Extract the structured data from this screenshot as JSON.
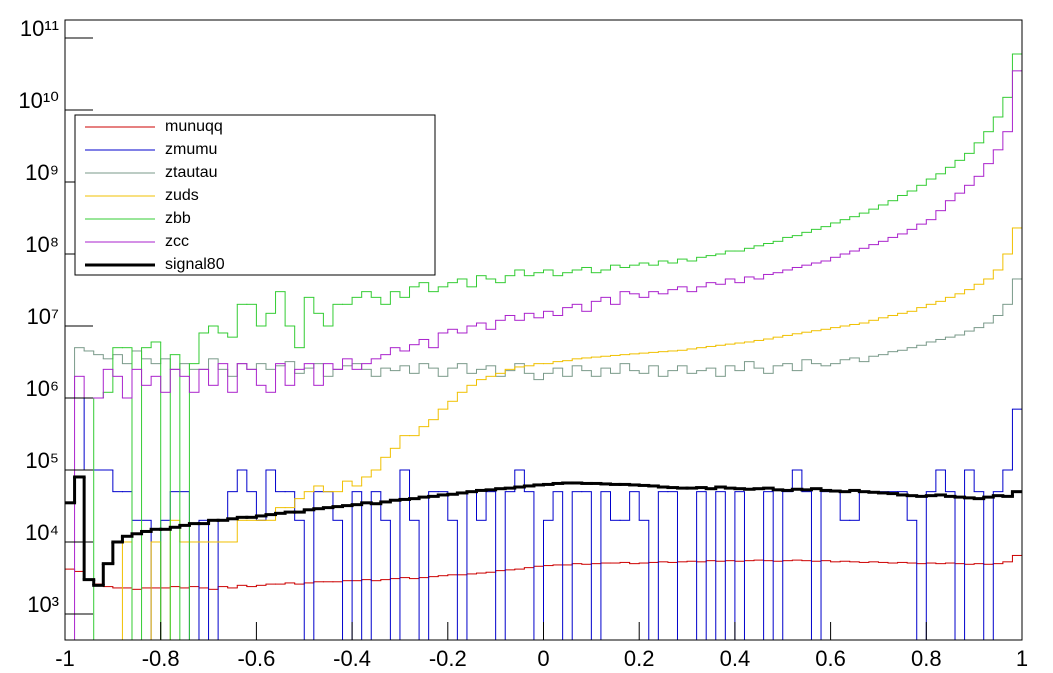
{
  "chart_data": {
    "type": "histogram",
    "log_y": true,
    "xlim": [
      -1,
      1
    ],
    "ylim": [
      435,
      178000000000
    ],
    "xticks": [
      -1,
      -0.8,
      -0.6,
      -0.4,
      -0.2,
      0,
      0.2,
      0.4,
      0.6,
      0.8,
      1
    ],
    "yticks": [
      {
        "value": 1000,
        "label": "10³"
      },
      {
        "value": 10000,
        "label": "10⁴"
      },
      {
        "value": 100000,
        "label": "10⁵"
      },
      {
        "value": 1000000,
        "label": "10⁶"
      },
      {
        "value": 10000000,
        "label": "10⁷"
      },
      {
        "value": 100000000,
        "label": "10⁸"
      },
      {
        "value": 1000000000,
        "label": "10⁹"
      },
      {
        "value": 10000000000,
        "label": "10¹⁰"
      },
      {
        "value": 100000000000,
        "label": "10¹¹"
      }
    ],
    "bins": [
      -1,
      -0.98,
      -0.96,
      -0.94,
      -0.92,
      -0.9,
      -0.88,
      -0.86,
      -0.84,
      -0.82,
      -0.8,
      -0.78,
      -0.76,
      -0.74,
      -0.72,
      -0.7,
      -0.68,
      -0.66,
      -0.64,
      -0.62,
      -0.6,
      -0.58,
      -0.56,
      -0.54,
      -0.52,
      -0.5,
      -0.48,
      -0.46,
      -0.44,
      -0.42,
      -0.4,
      -0.38,
      -0.36,
      -0.34,
      -0.32,
      -0.3,
      -0.28,
      -0.26,
      -0.24,
      -0.22,
      -0.2,
      -0.18,
      -0.16,
      -0.14,
      -0.12,
      -0.1,
      -0.08,
      -0.06,
      -0.04,
      -0.02,
      0,
      0.02,
      0.04,
      0.06,
      0.08,
      0.1,
      0.12,
      0.14,
      0.16,
      0.18,
      0.2,
      0.22,
      0.24,
      0.26,
      0.28,
      0.3,
      0.32,
      0.34,
      0.36,
      0.38,
      0.4,
      0.42,
      0.44,
      0.46,
      0.48,
      0.5,
      0.52,
      0.54,
      0.56,
      0.58,
      0.6,
      0.62,
      0.64,
      0.66,
      0.68,
      0.7,
      0.72,
      0.74,
      0.76,
      0.78,
      0.8,
      0.82,
      0.84,
      0.86,
      0.88,
      0.9,
      0.92,
      0.94,
      0.96,
      0.98,
      1
    ],
    "legend": "upper left",
    "series": [
      {
        "name": "munuqq",
        "color": "#cc0000",
        "values": [
          4200,
          3900,
          3000,
          2600,
          2400,
          2300,
          2300,
          2200,
          2300,
          2300,
          2300,
          2400,
          2300,
          2400,
          2300,
          2200,
          2400,
          2300,
          2500,
          2400,
          2500,
          2600,
          2600,
          2700,
          2600,
          2700,
          2800,
          2800,
          2800,
          2900,
          2900,
          3000,
          2900,
          3000,
          3100,
          3200,
          3100,
          3200,
          3300,
          3400,
          3500,
          3500,
          3600,
          3700,
          3800,
          4000,
          4100,
          4200,
          4400,
          4600,
          4700,
          4800,
          4800,
          5000,
          4900,
          5000,
          5100,
          5100,
          5200,
          5000,
          5100,
          5200,
          5300,
          5200,
          5300,
          5400,
          5300,
          5500,
          5400,
          5500,
          5400,
          5500,
          5600,
          5500,
          5400,
          5500,
          5600,
          5500,
          5400,
          5500,
          5300,
          5400,
          5300,
          5200,
          5300,
          5200,
          5100,
          5200,
          5100,
          5000,
          5100,
          5000,
          5100,
          5000,
          4900,
          5000,
          4900,
          5000,
          5300,
          6500
        ]
      },
      {
        "name": "zmumu",
        "color": "#0000cc",
        "values": [
          1000000,
          1000000,
          100000,
          100000,
          100000,
          50000,
          50000,
          20000,
          20000,
          0,
          20000,
          50000,
          50000,
          0,
          20000,
          0,
          20000,
          50000,
          100000,
          50000,
          20000,
          100000,
          50000,
          50000,
          20000,
          0,
          50000,
          50000,
          20000,
          0,
          50000,
          0,
          50000,
          20000,
          0,
          100000,
          20000,
          0,
          50000,
          50000,
          20000,
          0,
          50000,
          20000,
          50000,
          0,
          50000,
          100000,
          50000,
          0,
          20000,
          50000,
          0,
          50000,
          50000,
          0,
          50000,
          20000,
          20000,
          50000,
          20000,
          0,
          50000,
          50000,
          0,
          0,
          50000,
          0,
          50000,
          0,
          50000,
          0,
          0,
          50000,
          0,
          50000,
          100000,
          50000,
          0,
          50000,
          50000,
          20000,
          20000,
          50000,
          50000,
          50000,
          50000,
          50000,
          20000,
          0,
          50000,
          100000,
          50000,
          0,
          100000,
          50000,
          0,
          50000,
          100000,
          700000
        ]
      },
      {
        "name": "ztautau",
        "color": "#7a9a8a",
        "values": [
          1000000,
          5000000,
          4500000,
          4000000,
          3500000,
          4000000,
          3000000,
          4500000,
          3500000,
          3000000,
          3500000,
          2500000,
          3000000,
          2500000,
          2500000,
          3500000,
          2500000,
          2000000,
          3000000,
          2500000,
          3000000,
          2500000,
          2800000,
          3200000,
          2200000,
          2600000,
          3000000,
          2000000,
          2500000,
          2800000,
          3000000,
          2500000,
          2000000,
          2600000,
          2400000,
          2800000,
          2200000,
          3000000,
          2600000,
          2000000,
          2600000,
          3000000,
          2200000,
          2500000,
          2800000,
          2000000,
          2400000,
          3000000,
          2200000,
          1800000,
          2200000,
          2600000,
          2000000,
          2800000,
          2400000,
          2000000,
          2600000,
          2200000,
          3000000,
          2400000,
          2200000,
          2800000,
          2000000,
          2400000,
          2800000,
          2200000,
          2400000,
          2600000,
          2000000,
          2800000,
          2400000,
          3200000,
          2600000,
          2200000,
          2800000,
          3000000,
          2400000,
          3400000,
          3000000,
          2800000,
          3000000,
          3400000,
          3600000,
          3200000,
          3800000,
          4000000,
          4400000,
          4600000,
          5000000,
          5400000,
          6000000,
          6500000,
          7000000,
          7500000,
          8500000,
          9500000,
          11000000,
          14000000,
          20000000,
          45000000
        ]
      },
      {
        "name": "zuds",
        "color": "#f0c000",
        "values": [
          0,
          0,
          0,
          0,
          0,
          0,
          10000,
          0,
          0,
          10000,
          0,
          20000,
          10000,
          10000,
          10000,
          10000,
          10000,
          10000,
          20000,
          20000,
          20000,
          20000,
          30000,
          30000,
          40000,
          50000,
          60000,
          50000,
          50000,
          70000,
          60000,
          80000,
          100000,
          150000,
          200000,
          300000,
          300000,
          400000,
          500000,
          700000,
          900000,
          1200000,
          1500000,
          1800000,
          2000000,
          2200000,
          2500000,
          2700000,
          2800000,
          3000000,
          3000000,
          3200000,
          3300000,
          3500000,
          3600000,
          3700000,
          3800000,
          3900000,
          4000000,
          4100000,
          4200000,
          4300000,
          4400000,
          4500000,
          4600000,
          4800000,
          5000000,
          5200000,
          5400000,
          5600000,
          5800000,
          6000000,
          6300000,
          6600000,
          7000000,
          7400000,
          7800000,
          8200000,
          8600000,
          9000000,
          9500000,
          10000000,
          10500000,
          11000000,
          12000000,
          13000000,
          14000000,
          15000000,
          16000000,
          18000000,
          20000000,
          22000000,
          25000000,
          28000000,
          32000000,
          38000000,
          45000000,
          60000000,
          100000000,
          230000000
        ]
      },
      {
        "name": "zbb",
        "color": "#33cc33",
        "values": [
          0,
          0,
          0,
          1000000,
          1200000,
          5000000,
          5000000,
          0,
          5000000,
          6000000,
          0,
          4000000,
          0,
          3000000,
          8000000,
          10000000,
          8000000,
          7000000,
          20000000,
          20000000,
          10000000,
          15000000,
          30000000,
          10000000,
          5000000,
          25000000,
          15000000,
          10000000,
          20000000,
          20000000,
          25000000,
          30000000,
          25000000,
          20000000,
          30000000,
          25000000,
          35000000,
          40000000,
          30000000,
          35000000,
          40000000,
          45000000,
          35000000,
          50000000,
          45000000,
          40000000,
          50000000,
          60000000,
          50000000,
          55000000,
          60000000,
          50000000,
          55000000,
          60000000,
          65000000,
          55000000,
          60000000,
          70000000,
          65000000,
          70000000,
          75000000,
          70000000,
          80000000,
          75000000,
          85000000,
          80000000,
          90000000,
          95000000,
          100000000,
          110000000,
          110000000,
          120000000,
          130000000,
          140000000,
          150000000,
          170000000,
          180000000,
          200000000,
          220000000,
          240000000,
          270000000,
          300000000,
          330000000,
          370000000,
          420000000,
          480000000,
          550000000,
          650000000,
          750000000,
          900000000,
          1100000000,
          1300000000,
          1600000000,
          2000000000,
          2500000000,
          3500000000,
          5000000000,
          8000000000,
          15000000000,
          60000000000
        ]
      },
      {
        "name": "zcc",
        "color": "#aa22cc",
        "values": [
          0,
          2000000,
          1000000,
          1000000,
          2500000,
          2000000,
          1000000,
          2500000,
          1500000,
          2000000,
          1200000,
          2500000,
          2000000,
          1200000,
          2500000,
          1500000,
          3000000,
          1200000,
          3000000,
          2500000,
          1500000,
          1200000,
          3000000,
          1500000,
          2500000,
          3000000,
          1500000,
          3000000,
          2500000,
          3500000,
          2500000,
          3000000,
          3500000,
          4000000,
          5000000,
          4500000,
          5500000,
          6500000,
          5000000,
          8000000,
          9000000,
          8000000,
          10000000,
          11000000,
          9000000,
          12000000,
          14000000,
          12000000,
          15000000,
          13000000,
          16000000,
          14000000,
          18000000,
          20000000,
          16000000,
          22000000,
          25000000,
          20000000,
          30000000,
          28000000,
          25000000,
          30000000,
          28000000,
          32000000,
          35000000,
          30000000,
          35000000,
          40000000,
          38000000,
          45000000,
          40000000,
          48000000,
          45000000,
          52000000,
          55000000,
          60000000,
          65000000,
          70000000,
          75000000,
          80000000,
          90000000,
          100000000,
          110000000,
          120000000,
          135000000,
          150000000,
          170000000,
          190000000,
          220000000,
          260000000,
          300000000,
          400000000,
          550000000,
          700000000,
          900000000,
          1200000000,
          1800000000,
          2800000000,
          5000000000,
          35000000000
        ]
      },
      {
        "name": "signal80",
        "color": "#000000",
        "width": 3,
        "values": [
          35000,
          80000,
          3000,
          2500,
          5000,
          10000,
          12000,
          13000,
          14000,
          15000,
          15000,
          16000,
          17000,
          18000,
          18000,
          20000,
          20000,
          21000,
          22000,
          22000,
          23000,
          24000,
          25000,
          26000,
          26000,
          28000,
          29000,
          30000,
          31000,
          32000,
          33000,
          35000,
          34000,
          36000,
          38000,
          39000,
          40000,
          42000,
          43000,
          45000,
          46000,
          48000,
          50000,
          52000,
          53000,
          55000,
          56000,
          58000,
          60000,
          62000,
          63000,
          65000,
          66000,
          66000,
          65000,
          65000,
          64000,
          63000,
          63000,
          62000,
          61000,
          60000,
          58000,
          57000,
          56000,
          56000,
          57000,
          55000,
          58000,
          56000,
          55000,
          54000,
          55000,
          56000,
          53000,
          52000,
          54000,
          53000,
          55000,
          52000,
          51000,
          50000,
          52000,
          50000,
          49000,
          48000,
          47000,
          45000,
          44000,
          43000,
          44000,
          45000,
          43000,
          42000,
          41000,
          40000,
          42000,
          44000,
          43000,
          50000
        ]
      }
    ]
  }
}
